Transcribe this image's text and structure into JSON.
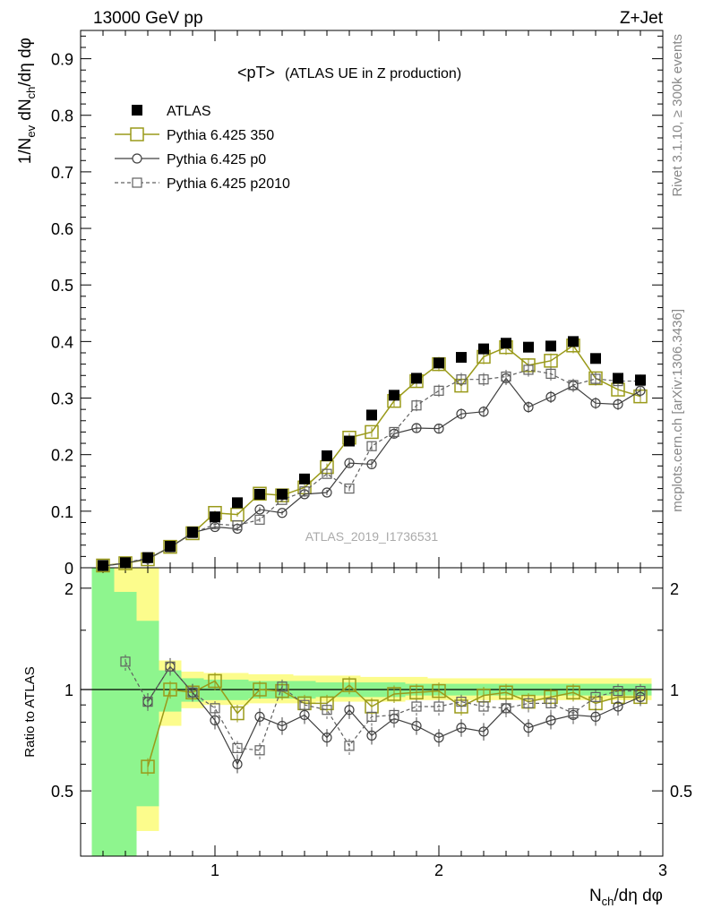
{
  "header": {
    "left": "13000 GeV pp",
    "right": "Z+Jet"
  },
  "plot_title": {
    "main": "<pT>",
    "sub": "(ATLAS UE in Z production)"
  },
  "side_labels": {
    "rivet": "Rivet 3.1.10, ≥ 300k events",
    "mcplots": "mcplots.cern.ch [arXiv:1306.3436]"
  },
  "watermark": "ATLAS_2019_I1736531",
  "axes": {
    "ylabel_main": "1/N_ev dN_ch/dη dφ",
    "ylabel_ratio": "Ratio to ATLAS",
    "xlabel": "N_ch/dη dφ"
  },
  "legend": [
    {
      "key": "atlas",
      "label": "ATLAS"
    },
    {
      "key": "p350",
      "label": "Pythia 6.425 350"
    },
    {
      "key": "p0",
      "label": "Pythia 6.425 p0"
    },
    {
      "key": "p2010",
      "label": "Pythia 6.425 p2010"
    }
  ],
  "colors": {
    "atlas": "#000000",
    "p350": "#9a9a1a",
    "p0": "#404040",
    "p2010": "#606060",
    "band_inner": "#8ef58e",
    "band_outer": "#fcfc8c"
  },
  "chart_data": {
    "type": "scatter",
    "xlim": [
      0.4,
      3.0
    ],
    "ylim_main": [
      0,
      0.95
    ],
    "ylim_ratio": [
      0.32,
      2.3
    ],
    "ratio_scale": "log",
    "x_ticks": [
      "1",
      "2",
      "3"
    ],
    "y_ticks_main": [
      "0",
      "0.1",
      "0.2",
      "0.3",
      "0.4",
      "0.5",
      "0.6",
      "0.7",
      "0.8",
      "0.9"
    ],
    "y_ticks_ratio": [
      "0.5",
      "1",
      "2"
    ],
    "x": [
      0.5,
      0.6,
      0.7,
      0.8,
      0.9,
      1.0,
      1.1,
      1.2,
      1.3,
      1.4,
      1.5,
      1.6,
      1.7,
      1.8,
      1.9,
      2.0,
      2.1,
      2.2,
      2.3,
      2.4,
      2.5,
      2.6,
      2.7,
      2.8,
      2.9
    ],
    "series": [
      {
        "key": "atlas",
        "name": "ATLAS",
        "values": [
          0.004,
          0.009,
          0.018,
          0.038,
          0.063,
          0.09,
          0.115,
          0.13,
          0.13,
          0.157,
          0.198,
          0.224,
          0.27,
          0.305,
          0.335,
          0.362,
          0.372,
          0.387,
          0.397,
          0.39,
          0.392,
          0.4,
          0.37,
          0.335,
          0.332
        ]
      },
      {
        "key": "p350",
        "name": "Pythia 6.425 350",
        "values": [
          0.004,
          0.008,
          0.015,
          0.037,
          0.061,
          0.097,
          0.094,
          0.131,
          0.128,
          0.142,
          0.178,
          0.23,
          0.24,
          0.295,
          0.33,
          0.36,
          0.322,
          0.373,
          0.39,
          0.358,
          0.366,
          0.393,
          0.335,
          0.315,
          0.303
        ]
      },
      {
        "key": "p0",
        "name": "Pythia 6.425 p0",
        "values": [
          0.003,
          0.008,
          0.016,
          0.036,
          0.062,
          0.072,
          0.069,
          0.103,
          0.097,
          0.13,
          0.133,
          0.185,
          0.183,
          0.237,
          0.247,
          0.246,
          0.272,
          0.276,
          0.335,
          0.284,
          0.302,
          0.322,
          0.291,
          0.289,
          0.313
        ]
      },
      {
        "key": "p2010",
        "name": "Pythia 6.425 p2010",
        "values": [
          0.003,
          0.009,
          0.017,
          0.036,
          0.061,
          0.077,
          0.075,
          0.085,
          0.12,
          0.135,
          0.166,
          0.14,
          0.215,
          0.24,
          0.287,
          0.313,
          0.333,
          0.333,
          0.338,
          0.35,
          0.343,
          0.323,
          0.334,
          0.33,
          0.33
        ]
      }
    ],
    "ratio_series": [
      {
        "key": "p350",
        "values": [
          null,
          null,
          0.59,
          1.0,
          0.98,
          1.06,
          0.85,
          1.0,
          0.99,
          0.91,
          0.91,
          1.03,
          0.89,
          0.97,
          0.98,
          0.99,
          0.89,
          0.96,
          0.98,
          0.92,
          0.95,
          0.98,
          0.91,
          0.95,
          0.95
        ]
      },
      {
        "key": "p0",
        "values": [
          null,
          null,
          0.92,
          1.17,
          0.98,
          0.81,
          0.6,
          0.83,
          0.78,
          0.84,
          0.72,
          0.87,
          0.73,
          0.82,
          0.78,
          0.72,
          0.77,
          0.75,
          0.88,
          0.77,
          0.81,
          0.84,
          0.83,
          0.89,
          0.95
        ]
      },
      {
        "key": "p2010",
        "values": [
          null,
          1.21,
          0.92,
          1.17,
          0.98,
          0.88,
          0.67,
          0.66,
          1.02,
          0.9,
          0.87,
          0.68,
          0.83,
          0.84,
          0.89,
          0.89,
          0.92,
          0.89,
          0.88,
          0.91,
          0.91,
          0.85,
          0.95,
          0.99,
          0.99
        ]
      }
    ],
    "band": {
      "inner": [
        [
          0.17,
          5.0
        ],
        [
          0.17,
          1.95
        ],
        [
          0.45,
          1.6
        ],
        [
          0.86,
          1.14
        ],
        [
          0.92,
          1.08
        ],
        [
          0.93,
          1.07
        ],
        [
          0.93,
          1.07
        ],
        [
          0.94,
          1.06
        ],
        [
          0.94,
          1.06
        ],
        [
          0.94,
          1.06
        ],
        [
          0.95,
          1.05
        ],
        [
          0.95,
          1.05
        ],
        [
          0.95,
          1.05
        ],
        [
          0.95,
          1.05
        ],
        [
          0.96,
          1.04
        ],
        [
          0.96,
          1.04
        ],
        [
          0.96,
          1.04
        ],
        [
          0.96,
          1.04
        ],
        [
          0.96,
          1.04
        ],
        [
          0.96,
          1.04
        ],
        [
          0.96,
          1.04
        ],
        [
          0.96,
          1.04
        ],
        [
          0.96,
          1.04
        ],
        [
          0.96,
          1.04
        ],
        [
          0.96,
          1.04
        ]
      ],
      "outer": [
        [
          0.17,
          5.0
        ],
        [
          0.17,
          2.35
        ],
        [
          0.38,
          2.35
        ],
        [
          0.78,
          1.22
        ],
        [
          0.88,
          1.13
        ],
        [
          0.9,
          1.12
        ],
        [
          0.9,
          1.12
        ],
        [
          0.91,
          1.11
        ],
        [
          0.91,
          1.11
        ],
        [
          0.91,
          1.1
        ],
        [
          0.92,
          1.1
        ],
        [
          0.92,
          1.1
        ],
        [
          0.92,
          1.09
        ],
        [
          0.92,
          1.09
        ],
        [
          0.93,
          1.09
        ],
        [
          0.93,
          1.08
        ],
        [
          0.93,
          1.08
        ],
        [
          0.93,
          1.08
        ],
        [
          0.93,
          1.08
        ],
        [
          0.93,
          1.08
        ],
        [
          0.93,
          1.08
        ],
        [
          0.93,
          1.08
        ],
        [
          0.93,
          1.08
        ],
        [
          0.93,
          1.08
        ],
        [
          0.93,
          1.08
        ]
      ]
    }
  }
}
